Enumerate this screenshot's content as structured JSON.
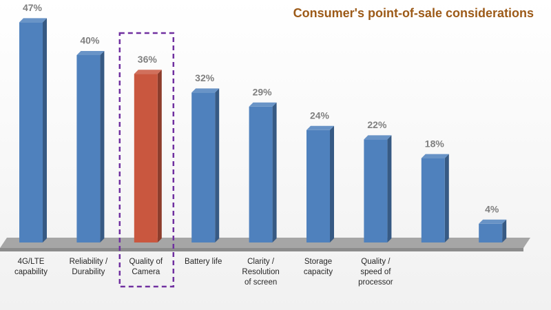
{
  "chart_data": {
    "type": "bar3d",
    "title": "Consumer's point-of-sale considerations",
    "categories": [
      "4G/LTE\ncapability",
      "Reliability /\nDurability",
      "Quality of\nCamera",
      "Battery life",
      "Clarity /\nResolution\nof screen",
      "Storage\ncapacity",
      "Quality /\nspeed of\nprocessor",
      null,
      null
    ],
    "values": [
      47,
      40,
      36,
      32,
      29,
      24,
      22,
      18,
      4
    ],
    "value_labels": [
      "47%",
      "40%",
      "36%",
      "32%",
      "29%",
      "24%",
      "22%",
      "18%",
      "4%"
    ],
    "colors": [
      "#4f81bd",
      "#4f81bd",
      "#c9573f",
      "#4f81bd",
      "#4f81bd",
      "#4f81bd",
      "#4f81bd",
      "#4f81bd",
      "#4f81bd"
    ],
    "highlight": 2
  }
}
